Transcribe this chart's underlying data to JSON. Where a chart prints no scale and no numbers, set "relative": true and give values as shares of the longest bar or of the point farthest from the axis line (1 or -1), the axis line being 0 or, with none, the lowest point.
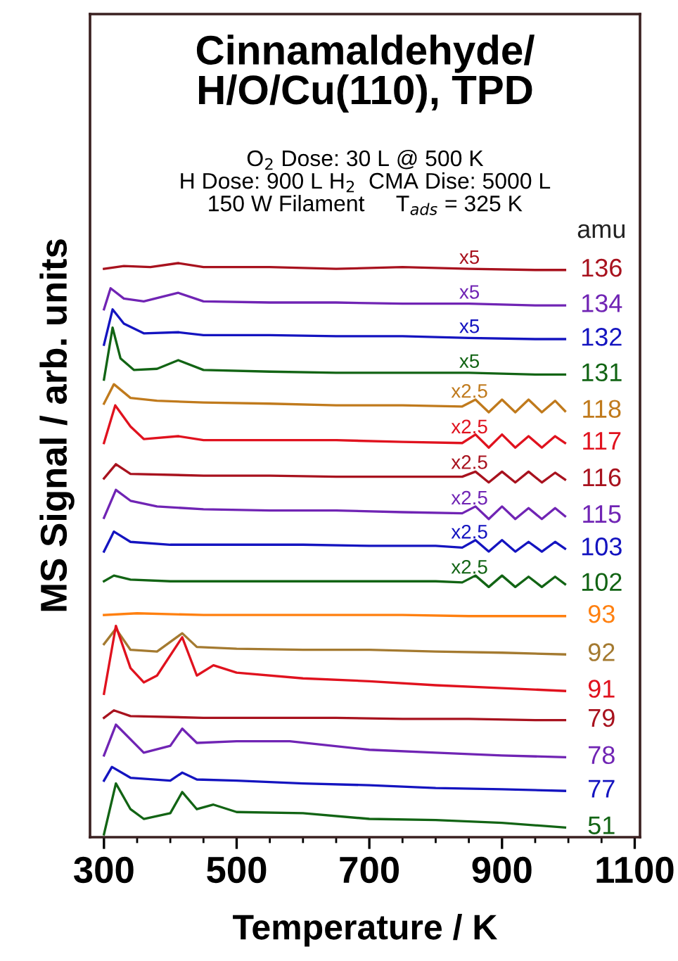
{
  "chart_data": {
    "type": "line",
    "title": "Cinnamaldehyde/\nH/O/Cu(110), TPD",
    "subtitle": "O$_{2}$ Dose: 30 L @ 500 K\nH Dose: 900 L H$_{2}$  CMA Dise: 5000 L\n150 W Filament     T$_{ads}$ = 325 K",
    "xlabel": "Temperature / K",
    "ylabel": "MS Signal / arb. units",
    "relative": true,
    "tick_labels": "x",
    "xlim": [
      279,
      1108
    ],
    "xticks": [
      300,
      500,
      700,
      900,
      1100
    ],
    "grid": false,
    "marker": "none",
    "line_style": "solid",
    "series": [
      {
        "name": "136",
        "color": "#a8121e",
        "x": [
          300,
          330,
          370,
          412,
          450,
          550,
          650,
          750,
          850,
          950,
          995
        ],
        "values": [
          0.99,
          0.995,
          0.993,
          1.0,
          0.993,
          0.993,
          0.99,
          0.993,
          0.99,
          0.988,
          0.988
        ]
      },
      {
        "name": "134",
        "color": "#7024b4",
        "x": [
          300,
          310,
          330,
          360,
          412,
          450,
          550,
          650,
          750,
          850,
          950,
          995
        ],
        "values": [
          0.919,
          0.956,
          0.938,
          0.933,
          0.948,
          0.933,
          0.931,
          0.931,
          0.929,
          0.929,
          0.926,
          0.926
        ]
      },
      {
        "name": "132",
        "color": "#1414c0",
        "x": [
          300,
          313,
          330,
          360,
          412,
          450,
          550,
          650,
          750,
          850,
          950,
          995
        ],
        "values": [
          0.857,
          0.919,
          0.894,
          0.877,
          0.879,
          0.874,
          0.874,
          0.872,
          0.872,
          0.869,
          0.867,
          0.867
        ]
      },
      {
        "name": "131",
        "color": "#126414",
        "x": [
          300,
          313,
          325,
          345,
          380,
          412,
          450,
          550,
          650,
          750,
          850,
          950,
          995
        ],
        "values": [
          0.796,
          0.887,
          0.833,
          0.813,
          0.815,
          0.83,
          0.813,
          0.81,
          0.808,
          0.808,
          0.808,
          0.805,
          0.805
        ]
      },
      {
        "name": "118",
        "color": "#c07a1c",
        "x": [
          300,
          315,
          340,
          380,
          450,
          550,
          650,
          750,
          840,
          860,
          880,
          900,
          920,
          940,
          960,
          980,
          995
        ],
        "values": [
          0.754,
          0.788,
          0.764,
          0.759,
          0.756,
          0.754,
          0.751,
          0.751,
          0.749,
          0.761,
          0.739,
          0.761,
          0.739,
          0.761,
          0.739,
          0.759,
          0.741
        ]
      },
      {
        "name": "117",
        "color": "#e0121e",
        "x": [
          300,
          317,
          340,
          360,
          412,
          450,
          550,
          650,
          750,
          840,
          860,
          880,
          900,
          920,
          940,
          960,
          980,
          995
        ],
        "values": [
          0.685,
          0.751,
          0.714,
          0.692,
          0.697,
          0.69,
          0.69,
          0.69,
          0.687,
          0.685,
          0.7,
          0.677,
          0.7,
          0.677,
          0.697,
          0.677,
          0.697,
          0.685
        ]
      },
      {
        "name": "116",
        "color": "#a8121e",
        "x": [
          300,
          318,
          340,
          450,
          550,
          650,
          750,
          840,
          860,
          880,
          900,
          920,
          940,
          960,
          980,
          995
        ],
        "values": [
          0.623,
          0.648,
          0.631,
          0.628,
          0.628,
          0.626,
          0.626,
          0.626,
          0.635,
          0.616,
          0.635,
          0.616,
          0.635,
          0.616,
          0.633,
          0.621
        ]
      },
      {
        "name": "115",
        "color": "#7024b4",
        "x": [
          300,
          318,
          340,
          380,
          450,
          550,
          650,
          750,
          840,
          860,
          880,
          900,
          920,
          940,
          960,
          980,
          995
        ],
        "values": [
          0.554,
          0.603,
          0.584,
          0.574,
          0.569,
          0.567,
          0.567,
          0.564,
          0.562,
          0.574,
          0.552,
          0.574,
          0.552,
          0.571,
          0.552,
          0.571,
          0.557
        ]
      },
      {
        "name": "103",
        "color": "#1414c0",
        "x": [
          300,
          315,
          340,
          400,
          500,
          600,
          700,
          800,
          840,
          860,
          880,
          900,
          920,
          940,
          960,
          980,
          995
        ],
        "values": [
          0.495,
          0.53,
          0.512,
          0.507,
          0.507,
          0.507,
          0.505,
          0.505,
          0.502,
          0.515,
          0.495,
          0.515,
          0.495,
          0.512,
          0.495,
          0.512,
          0.5
        ]
      },
      {
        "name": "102",
        "color": "#126414",
        "x": [
          300,
          315,
          340,
          400,
          500,
          600,
          700,
          800,
          840,
          860,
          880,
          900,
          920,
          940,
          960,
          980,
          995
        ],
        "values": [
          0.443,
          0.453,
          0.446,
          0.443,
          0.443,
          0.443,
          0.443,
          0.443,
          0.441,
          0.453,
          0.433,
          0.453,
          0.433,
          0.451,
          0.433,
          0.451,
          0.438
        ]
      },
      {
        "name": "93",
        "color": "#ff8010",
        "x": [
          300,
          350,
          450,
          550,
          650,
          750,
          850,
          950,
          995
        ],
        "values": [
          0.384,
          0.387,
          0.384,
          0.384,
          0.384,
          0.384,
          0.382,
          0.382,
          0.382
        ]
      },
      {
        "name": "92",
        "color": "#a47a30",
        "x": [
          300,
          318,
          340,
          380,
          418,
          440,
          500,
          600,
          700,
          800,
          900,
          995
        ],
        "values": [
          0.333,
          0.36,
          0.323,
          0.32,
          0.352,
          0.328,
          0.325,
          0.323,
          0.323,
          0.32,
          0.318,
          0.315
        ]
      },
      {
        "name": "91",
        "color": "#e0121e",
        "x": [
          300,
          318,
          340,
          360,
          380,
          418,
          440,
          465,
          500,
          600,
          700,
          800,
          900,
          995
        ],
        "values": [
          0.246,
          0.365,
          0.291,
          0.266,
          0.278,
          0.345,
          0.278,
          0.296,
          0.283,
          0.273,
          0.268,
          0.261,
          0.256,
          0.251
        ]
      },
      {
        "name": "79",
        "color": "#a8121e",
        "x": [
          300,
          315,
          340,
          450,
          550,
          650,
          750,
          850,
          950,
          995
        ],
        "values": [
          0.204,
          0.217,
          0.207,
          0.204,
          0.204,
          0.204,
          0.202,
          0.202,
          0.2,
          0.2
        ]
      },
      {
        "name": "78",
        "color": "#7024b4",
        "x": [
          300,
          318,
          360,
          400,
          418,
          440,
          500,
          580,
          700,
          800,
          900,
          995
        ],
        "values": [
          0.138,
          0.192,
          0.143,
          0.155,
          0.185,
          0.16,
          0.163,
          0.163,
          0.148,
          0.143,
          0.138,
          0.135
        ]
      },
      {
        "name": "77",
        "color": "#1414c0",
        "x": [
          300,
          312,
          340,
          400,
          418,
          440,
          500,
          600,
          700,
          800,
          900,
          995
        ],
        "values": [
          0.094,
          0.118,
          0.099,
          0.094,
          0.108,
          0.096,
          0.094,
          0.089,
          0.086,
          0.081,
          0.079,
          0.076
        ]
      },
      {
        "name": "51",
        "color": "#126414",
        "x": [
          300,
          318,
          340,
          360,
          400,
          418,
          440,
          465,
          500,
          600,
          700,
          800,
          900,
          995
        ],
        "values": [
          0.0,
          0.089,
          0.044,
          0.027,
          0.037,
          0.074,
          0.044,
          0.052,
          0.039,
          0.037,
          0.027,
          0.025,
          0.02,
          0.012
        ]
      }
    ],
    "annotations": [
      "amu",
      "x5",
      "x5",
      "x5",
      "x5",
      "x2.5",
      "x2.5",
      "x2.5",
      "x2.5",
      "x2.5",
      "x2.5"
    ]
  }
}
